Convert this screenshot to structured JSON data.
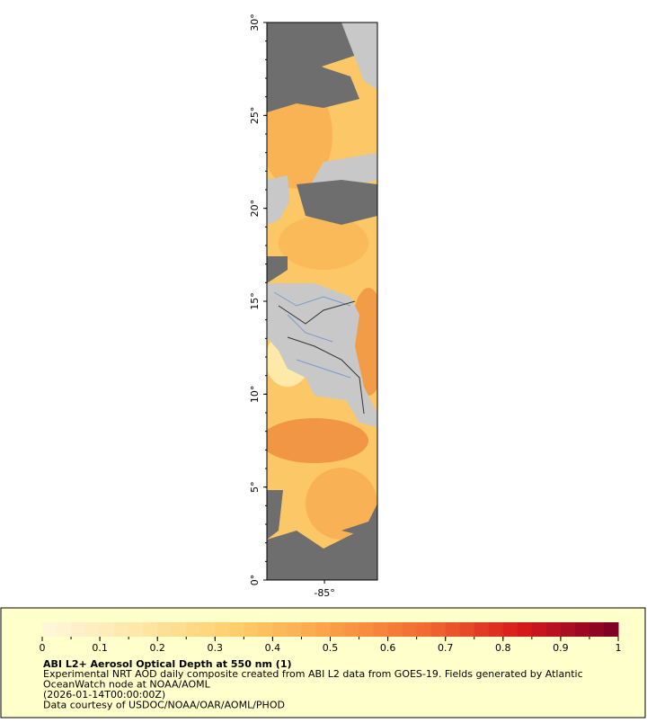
{
  "map": {
    "lat_range": [
      0,
      30
    ],
    "lon_range": [
      -88.1,
      -82.15
    ],
    "lat_ticks": [
      {
        "value": 0,
        "label": "0°"
      },
      {
        "value": 5,
        "label": "5°"
      },
      {
        "value": 10,
        "label": "10°"
      },
      {
        "value": 15,
        "label": "15°"
      },
      {
        "value": 20,
        "label": "20°"
      },
      {
        "value": 25,
        "label": "25°"
      },
      {
        "value": 30,
        "label": "30°"
      }
    ],
    "lon_ticks": [
      {
        "value": -85,
        "label": "-85°"
      }
    ]
  },
  "colorbar": {
    "range": [
      0,
      1
    ],
    "ticks": [
      0,
      0.1,
      0.2,
      0.3,
      0.4,
      0.5,
      0.6,
      0.7,
      0.8,
      0.9,
      1
    ],
    "colors": [
      "#fff7dc",
      "#fde7a8",
      "#fdcf6c",
      "#fba048",
      "#f26a30",
      "#d7191c",
      "#7a0026"
    ]
  },
  "legend": {
    "title": "ABI L2+ Aerosol Optical Depth at 550 nm (1)",
    "lines": [
      "Experimental NRT AOD daily composite created from ABI L2 data from GOES-19. Fields generated by Atlantic",
      "OceanWatch node at NOAA/AOML",
      "(2026-01-14T00:00:00Z)",
      "Data courtesy of USDOC/NOAA/OAR/AOML/PHOD"
    ]
  }
}
